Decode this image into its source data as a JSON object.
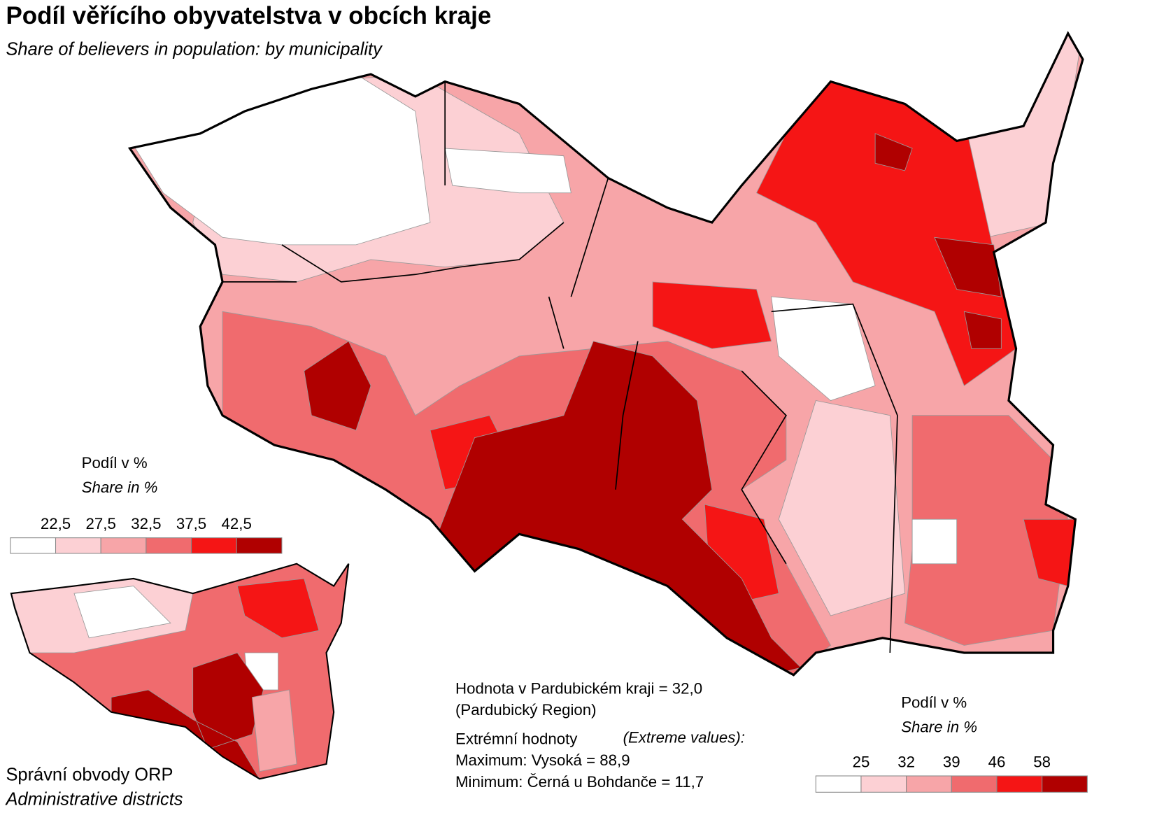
{
  "title": "Podíl věřícího obyvatelstva v obcích kraje",
  "subtitle": "Share of believers in population: by municipality",
  "legend_main": {
    "title": "Podíl v %",
    "subtitle": "Share in %",
    "breaks": [
      "22,5",
      "27,5",
      "32,5",
      "37,5",
      "42,5"
    ],
    "colors": [
      "#ffffff",
      "#fcd0d4",
      "#f7a5a8",
      "#f06b6e",
      "#f51515",
      "#b00000"
    ]
  },
  "inset": {
    "title": "Správní obvody  ORP",
    "subtitle": "Administrative districts"
  },
  "legend_inset": {
    "title": "Podíl v %",
    "subtitle": "Share in %",
    "breaks": [
      "25",
      "32",
      "39",
      "46",
      "58"
    ],
    "colors": [
      "#ffffff",
      "#fcd0d4",
      "#f7a5a8",
      "#f06b6e",
      "#f51515",
      "#b00000"
    ]
  },
  "notes": {
    "region_value": "Hodnota v Pardubickém kraji = 32,0",
    "region_name": "(Pardubický Region)",
    "extremes_label": "Extrémní hodnoty",
    "extremes_label_en": "(Extreme values):",
    "maximum": "Maximum: Vysoká = 88,9",
    "minimum": "Minimum: Černá u Bohdanče = 11,7"
  }
}
